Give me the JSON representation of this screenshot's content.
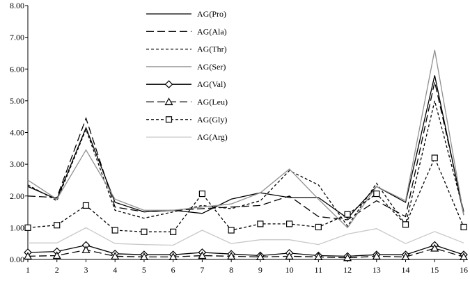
{
  "chart_data": {
    "type": "line",
    "title": "",
    "xlabel": "",
    "ylabel": "",
    "x": [
      1,
      2,
      3,
      4,
      5,
      6,
      7,
      8,
      9,
      10,
      11,
      12,
      13,
      14,
      15,
      16
    ],
    "x_ticks": [
      "1",
      "2",
      "3",
      "4",
      "5",
      "6",
      "7",
      "8",
      "9",
      "10",
      "11",
      "12",
      "13",
      "14",
      "15",
      "16"
    ],
    "ylim": [
      0,
      8
    ],
    "y_ticks": [
      "0.00",
      "1.00",
      "2.00",
      "3.00",
      "4.00",
      "5.00",
      "6.00",
      "7.00",
      "8.00"
    ],
    "grid": false,
    "legend_position": "top-center",
    "series": [
      {
        "name": "AG(Pro)",
        "style": "solid",
        "color": "#000000",
        "marker": "none",
        "values": [
          2.3,
          1.9,
          4.15,
          1.8,
          1.5,
          1.55,
          1.45,
          1.9,
          2.1,
          1.95,
          1.95,
          1.3,
          2.3,
          1.8,
          5.8,
          1.4
        ]
      },
      {
        "name": "AG(Ala)",
        "style": "dashed",
        "color": "#000000",
        "marker": "none",
        "values": [
          2.0,
          1.95,
          4.45,
          1.65,
          1.5,
          1.55,
          1.6,
          1.65,
          1.7,
          2.0,
          1.35,
          1.25,
          1.85,
          1.35,
          5.6,
          1.5
        ]
      },
      {
        "name": "AG(Thr)",
        "style": "dotted",
        "color": "#000000",
        "marker": "none",
        "values": [
          2.35,
          1.85,
          4.1,
          1.55,
          1.3,
          1.5,
          1.7,
          1.6,
          1.85,
          2.8,
          2.35,
          1.05,
          2.4,
          1.1,
          5.0,
          1.5
        ]
      },
      {
        "name": "AG(Ser)",
        "style": "solid",
        "color": "#909090",
        "marker": "none",
        "values": [
          2.5,
          1.9,
          3.45,
          1.9,
          1.55,
          1.55,
          1.65,
          1.75,
          2.1,
          2.85,
          1.9,
          1.0,
          2.3,
          1.85,
          6.6,
          1.4
        ]
      },
      {
        "name": "AG(Val)",
        "style": "solid",
        "color": "#000000",
        "marker": "diamond",
        "values": [
          0.22,
          0.25,
          0.45,
          0.18,
          0.15,
          0.15,
          0.22,
          0.17,
          0.12,
          0.2,
          0.12,
          0.1,
          0.15,
          0.15,
          0.45,
          0.15
        ]
      },
      {
        "name": "AG(Leu)",
        "style": "dashed",
        "color": "#000000",
        "marker": "triangle",
        "values": [
          0.1,
          0.12,
          0.3,
          0.1,
          0.08,
          0.08,
          0.12,
          0.1,
          0.08,
          0.1,
          0.08,
          0.05,
          0.1,
          0.08,
          0.35,
          0.08
        ]
      },
      {
        "name": "AG(Gly)",
        "style": "dotted",
        "color": "#000000",
        "marker": "square",
        "values": [
          1.0,
          1.08,
          1.7,
          0.92,
          0.87,
          0.87,
          2.07,
          0.92,
          1.12,
          1.12,
          1.02,
          1.42,
          2.07,
          1.1,
          3.2,
          1.02
        ]
      },
      {
        "name": "AG(Arg)",
        "style": "solid",
        "color": "#c8c8c8",
        "marker": "none",
        "values": [
          0.52,
          0.52,
          1.0,
          0.5,
          0.47,
          0.45,
          0.92,
          0.5,
          0.62,
          0.62,
          0.47,
          0.8,
          0.97,
          0.5,
          0.88,
          0.52
        ]
      }
    ]
  }
}
